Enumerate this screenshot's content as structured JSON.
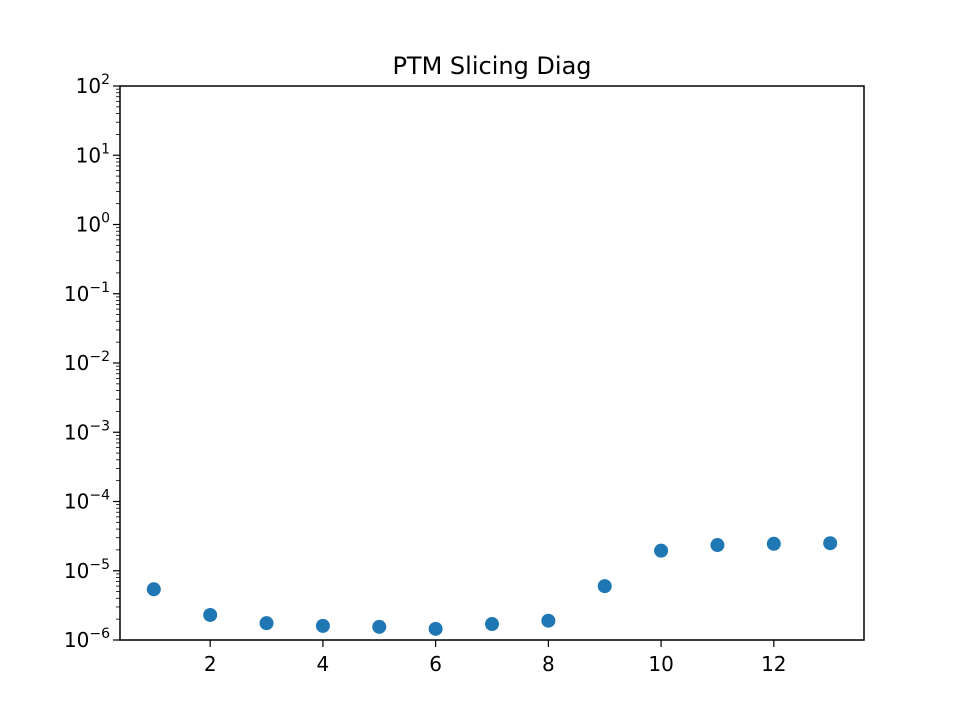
{
  "chart_data": {
    "type": "scatter",
    "title": "PTM Slicing Diag",
    "xlabel": "",
    "ylabel": "",
    "xlim": [
      0.4,
      13.6
    ],
    "ylim": [
      1e-06,
      100
    ],
    "yscale": "log",
    "grid": false,
    "x_ticks": [
      2,
      4,
      6,
      8,
      10,
      12
    ],
    "y_ticks": [
      {
        "base": "10",
        "exp": "−6",
        "value": 1e-06
      },
      {
        "base": "10",
        "exp": "−5",
        "value": 1e-05
      },
      {
        "base": "10",
        "exp": "−4",
        "value": 0.0001
      },
      {
        "base": "10",
        "exp": "−3",
        "value": 0.001
      },
      {
        "base": "10",
        "exp": "−2",
        "value": 0.01
      },
      {
        "base": "10",
        "exp": "−1",
        "value": 0.1
      },
      {
        "base": "10",
        "exp": "0",
        "value": 1
      },
      {
        "base": "10",
        "exp": "1",
        "value": 10
      },
      {
        "base": "10",
        "exp": "2",
        "value": 100
      }
    ],
    "series": [
      {
        "color": "#1f77b4",
        "x": [
          1,
          2,
          3,
          4,
          5,
          6,
          7,
          8,
          9,
          10,
          11,
          12,
          13
        ],
        "y": [
          5.4e-06,
          2.3e-06,
          1.75e-06,
          1.6e-06,
          1.55e-06,
          1.45e-06,
          1.7e-06,
          1.9e-06,
          6e-06,
          1.95e-05,
          2.35e-05,
          2.45e-05,
          2.5e-05
        ]
      }
    ]
  }
}
